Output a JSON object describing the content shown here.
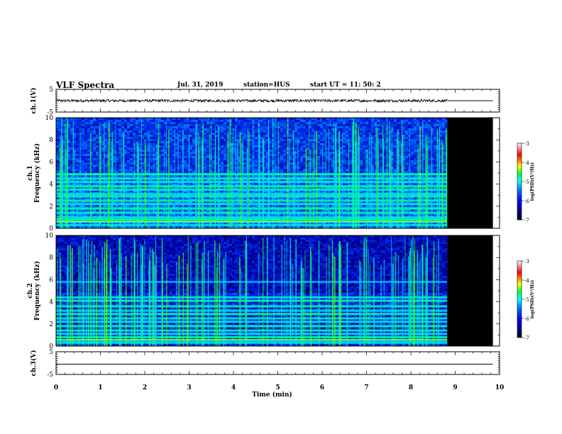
{
  "header": {
    "title": "VLF Spectra",
    "date": "Jul. 31, 2019",
    "station": "station=HUS",
    "start": "start  UT =  11: 50: 2"
  },
  "chart_data": [
    {
      "type": "line",
      "id": "ch1-waveform",
      "ylabel": "ch.1(V)",
      "ylim": [
        -5,
        5
      ],
      "yticks": [
        5,
        -5
      ],
      "xlim": [
        0,
        10
      ],
      "series": [
        {
          "x": [
            0,
            8.82
          ],
          "y": [
            0,
            0
          ],
          "noise_amplitude_V": 0.6
        }
      ],
      "flat_after_data": {
        "x": [
          8.82,
          9.85
        ],
        "y": [
          0,
          0
        ]
      }
    },
    {
      "type": "heatmap",
      "id": "ch1-spectrogram",
      "ylabel": "ch.1\nFrequency (kHz)",
      "ylim": [
        0,
        10
      ],
      "yticks": [
        0,
        2,
        4,
        6,
        8,
        10
      ],
      "xlim": [
        0,
        10
      ],
      "data_end_min": 8.82,
      "no_data_region_min": [
        8.82,
        9.85
      ],
      "bands_khz": [
        0.3,
        0.6,
        0.8,
        1.0,
        1.4,
        1.8,
        2.2,
        2.5,
        2.9,
        3.1,
        3.5,
        3.8,
        4.2,
        4.5,
        4.9
      ],
      "colorbar": {
        "label": "log(PSD)(V²/Hz)",
        "range": [
          -7,
          -3
        ],
        "ticks": [
          -3,
          -4,
          -5,
          -6,
          -7
        ]
      }
    },
    {
      "type": "heatmap",
      "id": "ch2-spectrogram",
      "ylabel": "ch.2\nFrequency (kHz)",
      "ylim": [
        0,
        10
      ],
      "yticks": [
        0,
        2,
        4,
        6,
        8,
        10
      ],
      "xlim": [
        0,
        10
      ],
      "data_end_min": 8.82,
      "no_data_region_min": [
        8.82,
        9.85
      ],
      "bands_khz": [
        0.3,
        0.5,
        0.8,
        1.1,
        1.4,
        1.8,
        2.2,
        2.5,
        2.9,
        3.2,
        3.6,
        4.1,
        4.4,
        5.8
      ],
      "colorbar": {
        "label": "log(PSD)(V²/Hz)",
        "range": [
          -7,
          -3
        ],
        "ticks": [
          -3,
          -4,
          -5,
          -6,
          -7
        ]
      }
    },
    {
      "type": "line",
      "id": "ch3-waveform",
      "ylabel": "ch.3(V)",
      "ylim": [
        -5,
        5
      ],
      "yticks": [
        5,
        -5
      ],
      "xlim": [
        0,
        10
      ],
      "series": [
        {
          "x": [
            0,
            9.85
          ],
          "y": [
            -0.5,
            -0.5
          ]
        }
      ]
    }
  ],
  "xaxis": {
    "label": "Time (min)",
    "ticks": [
      0,
      1,
      2,
      3,
      4,
      5,
      6,
      7,
      8,
      9,
      10
    ]
  },
  "colors": {
    "no_data": "#000000",
    "colormap": [
      "#000066",
      "#0000cc",
      "#0060ff",
      "#00c0ff",
      "#00ffb0",
      "#20ff00",
      "#ffff00",
      "#ff8000",
      "#ff0000",
      "#ffffff"
    ]
  }
}
